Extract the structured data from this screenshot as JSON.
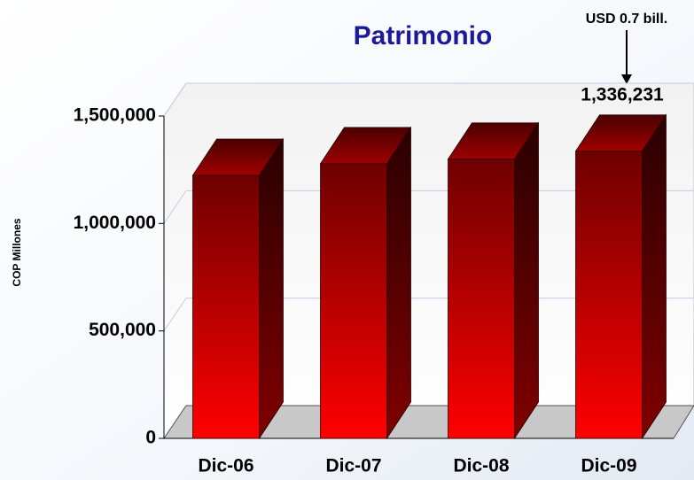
{
  "chart_data": {
    "type": "bar3d",
    "title": "Patrimonio",
    "y_label": "COP Millones",
    "categories": [
      "Dic-06",
      "Dic-07",
      "Dic-08",
      "Dic-09"
    ],
    "values": [
      1224000,
      1278000,
      1299000,
      1336231
    ],
    "value_labels": [
      null,
      null,
      null,
      "1,336,231"
    ],
    "annotation": "USD 0.7 bill.",
    "color": "#ff0000",
    "ylim": [
      0,
      1500000
    ],
    "yticks": [
      0,
      {
        "value": 500000,
        "label": "500,000"
      },
      {
        "value": 1000000,
        "label": "1,000,000"
      },
      {
        "value": 1500000,
        "label": "1,500,000"
      }
    ],
    "grid": true
  }
}
